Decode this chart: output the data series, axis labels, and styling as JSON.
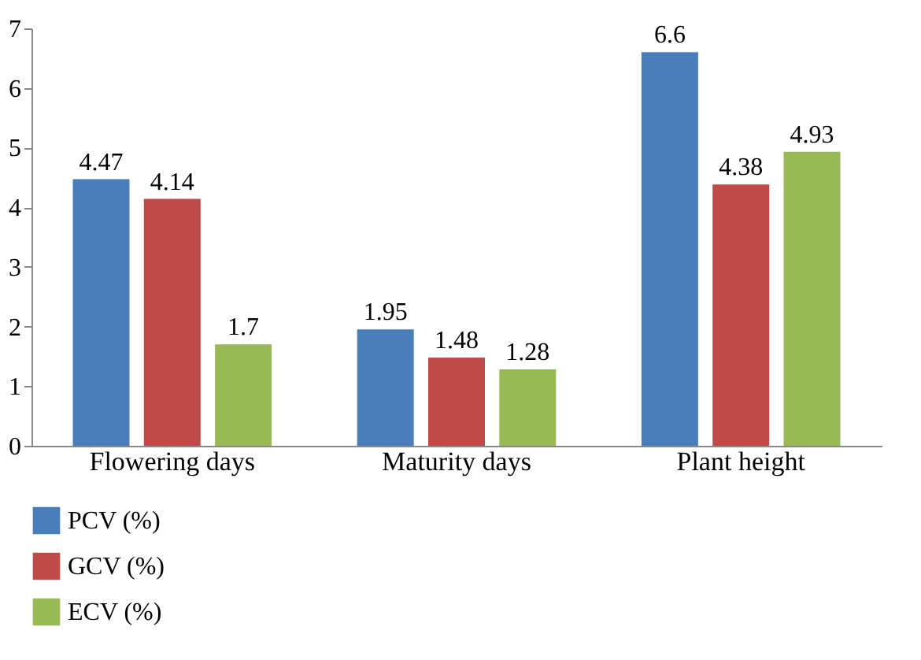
{
  "chart_data": {
    "type": "bar",
    "categories": [
      "Flowering days",
      "Maturity days",
      "Plant height"
    ],
    "series": [
      {
        "name": "PCV (%)",
        "color": "#4a7ebb",
        "values": [
          4.47,
          1.95,
          6.6
        ]
      },
      {
        "name": "GCV (%)",
        "color": "#be4b48",
        "values": [
          4.14,
          1.48,
          4.38
        ]
      },
      {
        "name": "ECV (%)",
        "color": "#98b954",
        "values": [
          1.7,
          1.28,
          4.93
        ]
      }
    ],
    "ylim": [
      0,
      7
    ],
    "yticks": [
      0,
      1,
      2,
      3,
      4,
      5,
      6,
      7
    ],
    "grid": false,
    "legend": "bottom",
    "data_labels": true
  }
}
